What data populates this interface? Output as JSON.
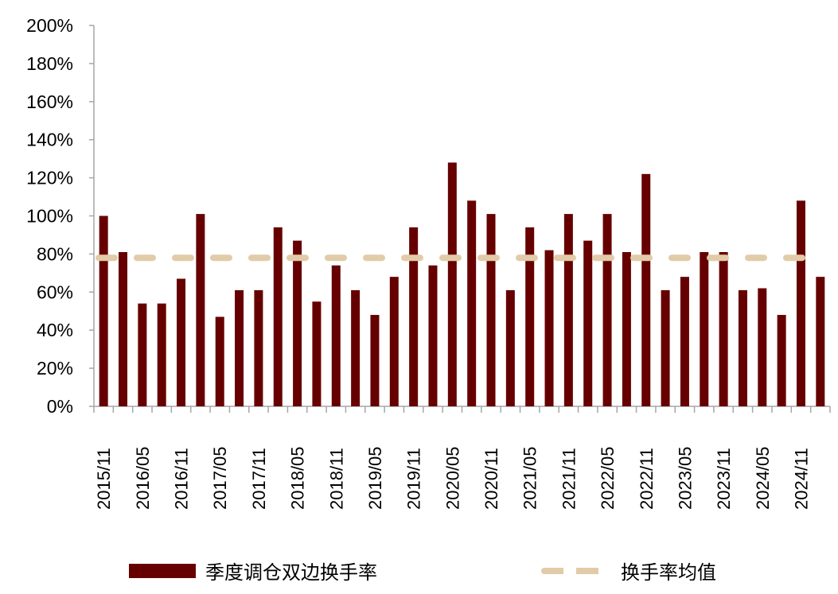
{
  "chart_data": {
    "type": "bar",
    "categories": [
      "2015/11",
      "",
      "2016/05",
      "",
      "2016/11",
      "",
      "2017/05",
      "",
      "2017/11",
      "",
      "2018/05",
      "",
      "2018/11",
      "",
      "2019/05",
      "",
      "2019/11",
      "",
      "2020/05",
      "",
      "2020/11",
      "",
      "2021/05",
      "",
      "2021/11",
      "",
      "2022/05",
      "",
      "2022/11",
      "",
      "2023/05",
      "",
      "2023/11",
      "",
      "2024/05",
      "",
      "2024/11",
      ""
    ],
    "series": [
      {
        "name": "季度调仓双边换手率",
        "type": "bar",
        "color": "#660000",
        "values": [
          100,
          81,
          54,
          54,
          67,
          101,
          47,
          61,
          61,
          94,
          87,
          55,
          74,
          61,
          48,
          68,
          94,
          74,
          128,
          108,
          101,
          61,
          94,
          82,
          101,
          87,
          101,
          81,
          122,
          61,
          68,
          81,
          81,
          61,
          62,
          48,
          108,
          68
        ]
      },
      {
        "name": "换手率均值",
        "type": "line",
        "style": "dashed",
        "color": "#e2cba8",
        "value": 78
      }
    ],
    "yticks": [
      "0%",
      "20%",
      "40%",
      "60%",
      "80%",
      "100%",
      "120%",
      "140%",
      "160%",
      "180%",
      "200%"
    ],
    "ylim": [
      0,
      200
    ],
    "yunit": "%",
    "grid": false,
    "legend": "bottom"
  }
}
